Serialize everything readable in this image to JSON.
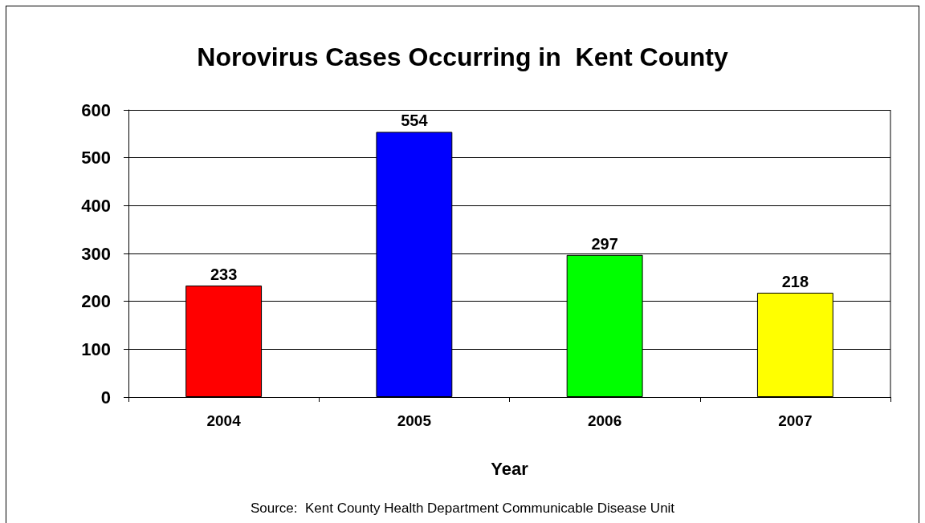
{
  "chart_data": {
    "type": "bar",
    "title": "Norovirus Cases Occurring in  Kent County",
    "xlabel": "Year",
    "categories": [
      "2004",
      "2005",
      "2006",
      "2007"
    ],
    "values": [
      233,
      554,
      297,
      218
    ],
    "colors": [
      "#ff0000",
      "#0000ff",
      "#00ff00",
      "#ffff00"
    ],
    "ylim": [
      0,
      600
    ],
    "yticks": [
      0,
      100,
      200,
      300,
      400,
      500,
      600
    ],
    "grid": "y",
    "data_labels": true,
    "annotations": [
      "Source:  Kent County Health Department Communicable Disease Unit"
    ]
  }
}
